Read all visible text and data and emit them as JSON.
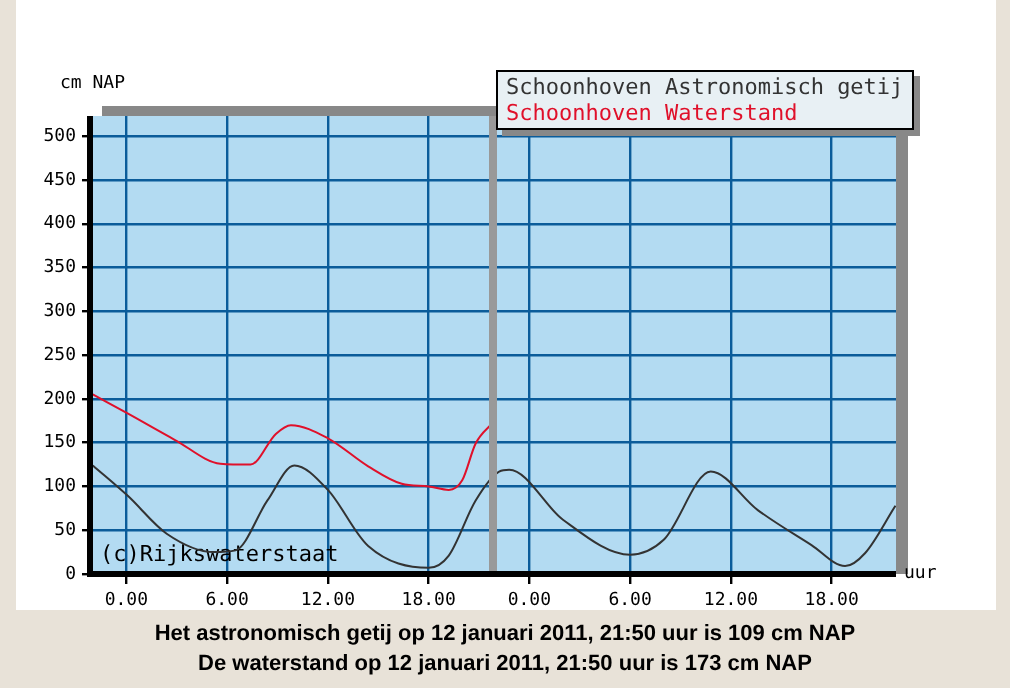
{
  "chart_data": {
    "type": "line",
    "xlabel": "uur",
    "ylabel": "cm NAP",
    "xlim": [
      "2011-01-11T21:50",
      "2011-01-13T21:50"
    ],
    "xticks": [
      {
        "value": "2011-01-12T00:00",
        "label": "0.00"
      },
      {
        "value": "2011-01-12T06:00",
        "label": "6.00"
      },
      {
        "value": "2011-01-12T12:00",
        "label": "12.00"
      },
      {
        "value": "2011-01-12T18:00",
        "label": "18.00"
      },
      {
        "value": "2011-01-13T00:00",
        "label": "0.00"
      },
      {
        "value": "2011-01-13T06:00",
        "label": "6.00"
      },
      {
        "value": "2011-01-13T12:00",
        "label": "12.00"
      },
      {
        "value": "2011-01-13T18:00",
        "label": "18.00"
      }
    ],
    "ylim": [
      0,
      523
    ],
    "yticks": [
      0,
      50,
      100,
      150,
      200,
      250,
      300,
      350,
      400,
      450,
      500
    ],
    "grid": true,
    "legend": "top right",
    "marker": "none",
    "line_style": "solid",
    "ref_lines": [
      {
        "axis": "x",
        "value": "2011-01-12T21:50",
        "color": "#999999"
      }
    ],
    "series": [
      {
        "name": "Schoonhoven Astronomisch getij",
        "color": "#333333",
        "x": [
          "2011-01-11T22:00",
          "2011-01-12T00:06",
          "2011-01-12T02:24",
          "2011-01-12T05:12",
          "2011-01-12T06:30",
          "2011-01-12T08:24",
          "2011-01-12T10:00",
          "2011-01-12T12:00",
          "2011-01-12T14:24",
          "2011-01-12T18:00",
          "2011-01-12T19:12",
          "2011-01-12T20:48",
          "2011-01-12T22:12",
          "2011-01-12T22:48",
          "2011-01-13T02:00",
          "2011-01-13T06:00",
          "2011-01-13T08:00",
          "2011-01-13T10:48",
          "2011-01-13T13:36",
          "2011-01-13T16:48",
          "2011-01-13T18:48",
          "2011-01-13T20:00",
          "2011-01-13T21:48"
        ],
        "values": [
          124,
          89,
          46,
          25,
          27,
          84,
          124,
          96,
          32,
          7,
          21,
          84,
          117,
          119,
          62,
          22,
          39,
          117,
          73,
          33,
          9,
          24,
          78
        ]
      },
      {
        "name": "Schoonhoven Waterstand",
        "color": "#e0102a",
        "x": [
          "2011-01-11T22:00",
          "2011-01-12T00:06",
          "2011-01-12T02:54",
          "2011-01-12T05:36",
          "2011-01-12T07:24",
          "2011-01-12T08:54",
          "2011-01-12T09:48",
          "2011-01-12T12:00",
          "2011-01-12T14:24",
          "2011-01-12T16:24",
          "2011-01-12T18:00",
          "2011-01-12T19:12",
          "2011-01-12T20:00",
          "2011-01-12T20:48",
          "2011-01-12T21:50"
        ],
        "values": [
          205,
          183,
          153,
          126,
          125,
          160,
          170,
          155,
          123,
          103,
          100,
          96,
          107,
          149,
          173
        ]
      }
    ],
    "annotations": [
      "(c)Rijkswaterstaat",
      "Het astronomisch getij op 12 januari 2011, 21:50 uur is 109 cm NAP",
      "De waterstand op 12 januari 2011, 21:50 uur is 173 cm NAP"
    ]
  }
}
